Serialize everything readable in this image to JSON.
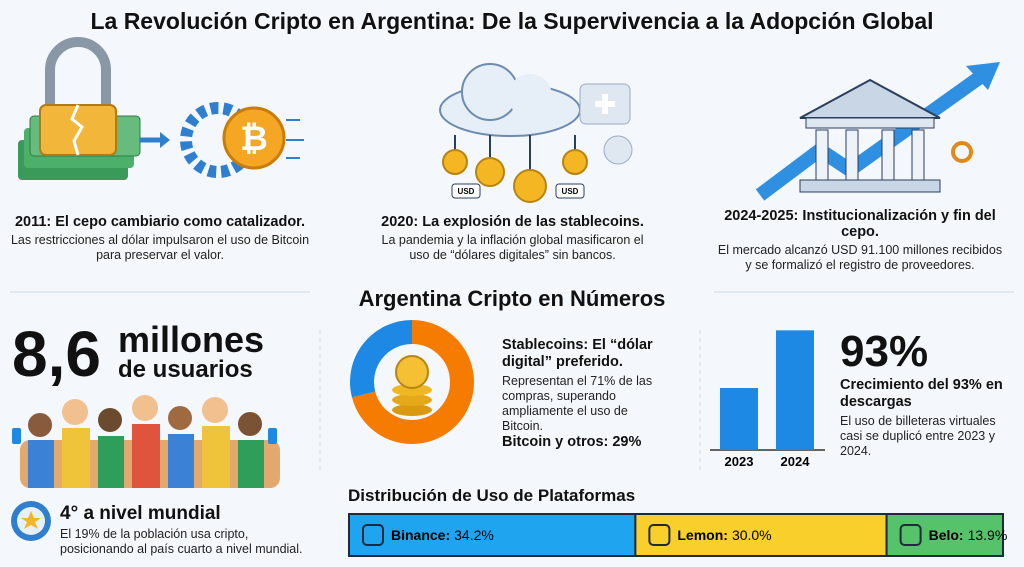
{
  "header": {
    "title": "La Revolución Cripto en Argentina: De la Supervivencia a la Adopción Global"
  },
  "timeline": [
    {
      "title": "2011: El cepo cambiario como catalizador.",
      "text": "Las restricciones al dólar impulsaron el uso de Bitcoin para preservar el valor."
    },
    {
      "title": "2020: La explosión de las stablecoins.",
      "text": "La pandemia y la inflación global masificaron el uso de “dólares digitales” sin bancos."
    },
    {
      "title": "2024-2025: Institucionalización y fin del cepo.",
      "text": "El mercado alcanzó USD 91.100 millones recibidos y se formalizó el registro de proveedores."
    }
  ],
  "icons": {
    "usd": "USD"
  },
  "section_title": "Argentina Cripto en Números",
  "users": {
    "number": "8,6",
    "line1": "millones",
    "line2": "de usuarios"
  },
  "rank": {
    "title": "4° a nivel mundial",
    "text": "El 19% de la población usa cripto, posicionando al país cuarto a nivel mundial."
  },
  "stablecoins": {
    "title": "Stablecoins: El “dólar digital” preferido.",
    "text": "Representan el 71% de las compras, superando ampliamente el uso de Bitcoin.",
    "footer": "Bitcoin y otros: 29%"
  },
  "downloads": {
    "number": "93%",
    "title": "Crecimiento del 93% en descargas",
    "text": "El uso de billeteras virtuales casi se duplicó entre 2023 y 2024."
  },
  "chart_data": [
    {
      "type": "pie",
      "values": [
        71,
        29
      ],
      "colors": [
        "#f57c00",
        "#1e88e5"
      ]
    },
    {
      "type": "bar",
      "categories": [
        "2023",
        "2024"
      ],
      "values": [
        100,
        193
      ],
      "ylim": [
        0,
        200
      ],
      "color": "#1e88e5"
    },
    {
      "type": "stacked-bar",
      "title": "Distribución de Uso de Plataformas",
      "categories": [
        "Binance:",
        "Lemon:",
        "Belo:"
      ],
      "values": [
        34.2,
        30.0,
        13.9
      ],
      "value_labels": [
        "34.2%",
        "30.0%",
        "13.9%"
      ],
      "colors": [
        "#1fa5f0",
        "#f9cf2b",
        "#56c26a"
      ]
    }
  ]
}
